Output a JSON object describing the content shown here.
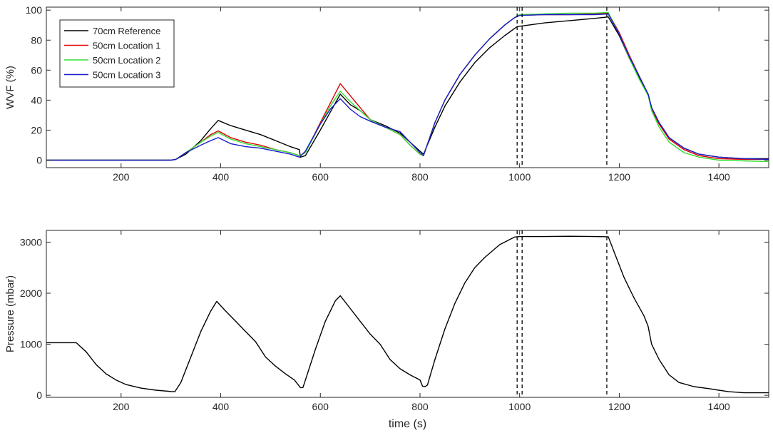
{
  "chart_data": [
    {
      "type": "line",
      "xlabel": "",
      "ylabel": "WVF (%)",
      "xlim": [
        50,
        1500
      ],
      "ylim": [
        -5,
        102
      ],
      "xticks": [
        200,
        400,
        600,
        800,
        1000,
        1200,
        1400
      ],
      "yticks": [
        0,
        20,
        40,
        60,
        80,
        100
      ],
      "grid": false,
      "legend_position": "top-left",
      "vlines": [
        995,
        1005,
        1175
      ],
      "series": [
        {
          "name": "70cm Reference",
          "color": "#000000",
          "points": [
            [
              50,
              0
            ],
            [
              300,
              0
            ],
            [
              310,
              0.5
            ],
            [
              330,
              4
            ],
            [
              360,
              13
            ],
            [
              380,
              21
            ],
            [
              395,
              26.5
            ],
            [
              420,
              23
            ],
            [
              450,
              20
            ],
            [
              480,
              17
            ],
            [
              510,
              13
            ],
            [
              540,
              9
            ],
            [
              558,
              7
            ],
            [
              560,
              2
            ],
            [
              570,
              3
            ],
            [
              600,
              20
            ],
            [
              620,
              32
            ],
            [
              640,
              44
            ],
            [
              660,
              37
            ],
            [
              680,
              33
            ],
            [
              700,
              27
            ],
            [
              730,
              23
            ],
            [
              760,
              18
            ],
            [
              780,
              12
            ],
            [
              800,
              6
            ],
            [
              807,
              4
            ],
            [
              830,
              22
            ],
            [
              850,
              36
            ],
            [
              880,
              52
            ],
            [
              910,
              65
            ],
            [
              940,
              75
            ],
            [
              970,
              83
            ],
            [
              995,
              89
            ],
            [
              1050,
              91.5
            ],
            [
              1100,
              93
            ],
            [
              1150,
              94.5
            ],
            [
              1178,
              95.5
            ],
            [
              1200,
              83
            ],
            [
              1220,
              68
            ],
            [
              1240,
              55
            ],
            [
              1258,
              44
            ],
            [
              1265,
              35
            ],
            [
              1280,
              25
            ],
            [
              1300,
              15
            ],
            [
              1330,
              8
            ],
            [
              1360,
              4
            ],
            [
              1400,
              2
            ],
            [
              1450,
              1
            ],
            [
              1500,
              1
            ]
          ]
        },
        {
          "name": "50cm Location 1",
          "color": "#e00000",
          "points": [
            [
              50,
              0
            ],
            [
              300,
              0
            ],
            [
              310,
              0.5
            ],
            [
              330,
              5
            ],
            [
              360,
              12
            ],
            [
              380,
              17
            ],
            [
              395,
              19.5
            ],
            [
              420,
              15
            ],
            [
              450,
              12
            ],
            [
              480,
              10
            ],
            [
              510,
              7
            ],
            [
              540,
              5
            ],
            [
              558,
              3
            ],
            [
              570,
              5
            ],
            [
              600,
              25
            ],
            [
              620,
              38
            ],
            [
              640,
              51
            ],
            [
              660,
              43
            ],
            [
              680,
              35
            ],
            [
              700,
              27
            ],
            [
              730,
              22
            ],
            [
              760,
              17
            ],
            [
              780,
              10
            ],
            [
              800,
              4
            ],
            [
              807,
              3
            ],
            [
              830,
              25
            ],
            [
              850,
              40
            ],
            [
              880,
              57
            ],
            [
              910,
              70
            ],
            [
              940,
              81
            ],
            [
              970,
              90
            ],
            [
              990,
              95
            ],
            [
              1000,
              96.5
            ],
            [
              1050,
              97
            ],
            [
              1100,
              97
            ],
            [
              1150,
              97.5
            ],
            [
              1178,
              98
            ],
            [
              1200,
              85
            ],
            [
              1220,
              70
            ],
            [
              1240,
              56
            ],
            [
              1258,
              44
            ],
            [
              1265,
              34
            ],
            [
              1280,
              24
            ],
            [
              1300,
              14
            ],
            [
              1330,
              7
            ],
            [
              1360,
              3
            ],
            [
              1400,
              1
            ],
            [
              1450,
              0.5
            ],
            [
              1500,
              0.5
            ]
          ]
        },
        {
          "name": "50cm Location 2",
          "color": "#33dd33",
          "points": [
            [
              50,
              0
            ],
            [
              300,
              0
            ],
            [
              310,
              0.5
            ],
            [
              330,
              5
            ],
            [
              360,
              12
            ],
            [
              380,
              16
            ],
            [
              395,
              18.5
            ],
            [
              420,
              14
            ],
            [
              450,
              11
            ],
            [
              480,
              9
            ],
            [
              510,
              7
            ],
            [
              540,
              5
            ],
            [
              558,
              3
            ],
            [
              570,
              5
            ],
            [
              600,
              24
            ],
            [
              620,
              36
            ],
            [
              640,
              46
            ],
            [
              660,
              39
            ],
            [
              680,
              33
            ],
            [
              700,
              27
            ],
            [
              730,
              22
            ],
            [
              760,
              17
            ],
            [
              780,
              10
            ],
            [
              800,
              4
            ],
            [
              807,
              3
            ],
            [
              830,
              25
            ],
            [
              850,
              40
            ],
            [
              880,
              57
            ],
            [
              910,
              70
            ],
            [
              940,
              81
            ],
            [
              970,
              90
            ],
            [
              990,
              95
            ],
            [
              1000,
              97
            ],
            [
              1050,
              97.5
            ],
            [
              1100,
              98
            ],
            [
              1150,
              98
            ],
            [
              1178,
              98.5
            ],
            [
              1200,
              84
            ],
            [
              1220,
              68
            ],
            [
              1240,
              54
            ],
            [
              1258,
              43
            ],
            [
              1265,
              33
            ],
            [
              1280,
              22
            ],
            [
              1300,
              12
            ],
            [
              1330,
              5
            ],
            [
              1360,
              2
            ],
            [
              1400,
              0
            ],
            [
              1450,
              -0.5
            ],
            [
              1500,
              -1
            ]
          ]
        },
        {
          "name": "50cm Location 3",
          "color": "#1a1acc",
          "points": [
            [
              50,
              0
            ],
            [
              300,
              0
            ],
            [
              310,
              0.5
            ],
            [
              330,
              5
            ],
            [
              360,
              10
            ],
            [
              380,
              13
            ],
            [
              395,
              15
            ],
            [
              420,
              11
            ],
            [
              450,
              9
            ],
            [
              480,
              8
            ],
            [
              510,
              6
            ],
            [
              540,
              4
            ],
            [
              558,
              2
            ],
            [
              570,
              6
            ],
            [
              600,
              24
            ],
            [
              620,
              34
            ],
            [
              640,
              41
            ],
            [
              660,
              34
            ],
            [
              680,
              29
            ],
            [
              700,
              26
            ],
            [
              730,
              22
            ],
            [
              760,
              19
            ],
            [
              780,
              12
            ],
            [
              800,
              5
            ],
            [
              807,
              3
            ],
            [
              830,
              25
            ],
            [
              850,
              40
            ],
            [
              880,
              57
            ],
            [
              910,
              70
            ],
            [
              940,
              81
            ],
            [
              970,
              90
            ],
            [
              990,
              95
            ],
            [
              1000,
              96.5
            ],
            [
              1050,
              97
            ],
            [
              1100,
              97
            ],
            [
              1150,
              97
            ],
            [
              1178,
              97.5
            ],
            [
              1200,
              84
            ],
            [
              1220,
              69
            ],
            [
              1240,
              56
            ],
            [
              1258,
              44
            ],
            [
              1265,
              35
            ],
            [
              1280,
              25
            ],
            [
              1300,
              15
            ],
            [
              1330,
              8
            ],
            [
              1360,
              4
            ],
            [
              1400,
              2
            ],
            [
              1450,
              1
            ],
            [
              1500,
              0.5
            ]
          ]
        }
      ]
    },
    {
      "type": "line",
      "xlabel": "time (s)",
      "ylabel": "Pressure (mbar)",
      "xlim": [
        50,
        1500
      ],
      "ylim": [
        -40,
        3230
      ],
      "xticks": [
        200,
        400,
        600,
        800,
        1000,
        1200,
        1400
      ],
      "yticks": [
        0,
        1000,
        2000,
        3000
      ],
      "grid": false,
      "vlines": [
        995,
        1005,
        1175
      ],
      "series": [
        {
          "color": "#000000",
          "points": [
            [
              50,
              1030
            ],
            [
              110,
              1030
            ],
            [
              130,
              850
            ],
            [
              150,
              600
            ],
            [
              170,
              420
            ],
            [
              190,
              300
            ],
            [
              210,
              210
            ],
            [
              240,
              140
            ],
            [
              270,
              100
            ],
            [
              300,
              75
            ],
            [
              308,
              70
            ],
            [
              320,
              250
            ],
            [
              340,
              750
            ],
            [
              360,
              1250
            ],
            [
              380,
              1650
            ],
            [
              392,
              1840
            ],
            [
              410,
              1650
            ],
            [
              430,
              1450
            ],
            [
              450,
              1250
            ],
            [
              470,
              1050
            ],
            [
              490,
              750
            ],
            [
              510,
              570
            ],
            [
              530,
              420
            ],
            [
              548,
              300
            ],
            [
              560,
              150
            ],
            [
              565,
              150
            ],
            [
              570,
              300
            ],
            [
              590,
              900
            ],
            [
              610,
              1450
            ],
            [
              630,
              1850
            ],
            [
              640,
              1950
            ],
            [
              660,
              1700
            ],
            [
              680,
              1450
            ],
            [
              700,
              1200
            ],
            [
              720,
              1000
            ],
            [
              740,
              700
            ],
            [
              760,
              520
            ],
            [
              780,
              400
            ],
            [
              800,
              300
            ],
            [
              805,
              180
            ],
            [
              810,
              170
            ],
            [
              815,
              200
            ],
            [
              830,
              700
            ],
            [
              850,
              1300
            ],
            [
              870,
              1800
            ],
            [
              890,
              2200
            ],
            [
              910,
              2500
            ],
            [
              930,
              2700
            ],
            [
              960,
              2950
            ],
            [
              990,
              3100
            ],
            [
              1000,
              3110
            ],
            [
              1050,
              3110
            ],
            [
              1100,
              3115
            ],
            [
              1150,
              3110
            ],
            [
              1178,
              3105
            ],
            [
              1190,
              2800
            ],
            [
              1210,
              2300
            ],
            [
              1230,
              1900
            ],
            [
              1250,
              1550
            ],
            [
              1258,
              1350
            ],
            [
              1265,
              1000
            ],
            [
              1280,
              700
            ],
            [
              1300,
              400
            ],
            [
              1320,
              250
            ],
            [
              1350,
              170
            ],
            [
              1380,
              130
            ],
            [
              1400,
              100
            ],
            [
              1420,
              70
            ],
            [
              1450,
              50
            ],
            [
              1500,
              50
            ]
          ]
        }
      ]
    }
  ]
}
